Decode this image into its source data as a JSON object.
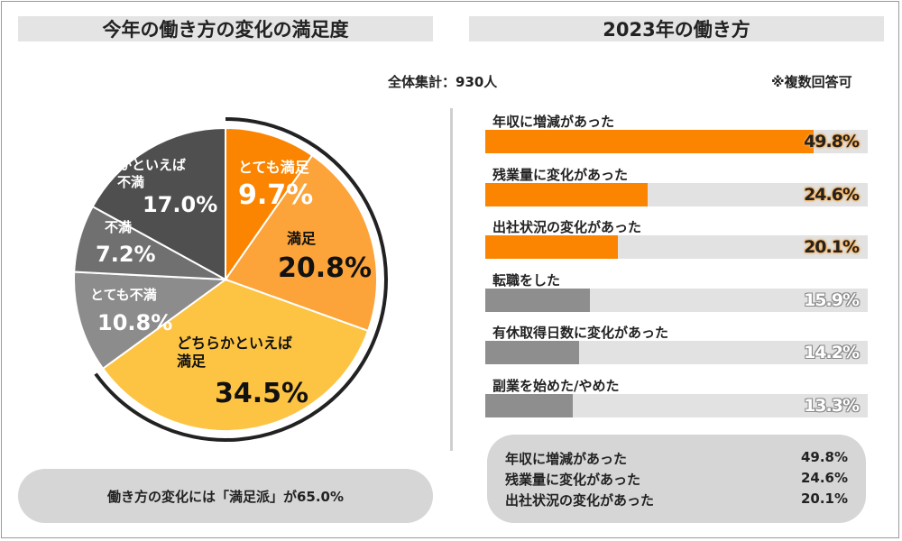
{
  "left": {
    "title": "今年の働き方の変化の満足度",
    "summary": "働き方の変化には「満足派」が65.0%"
  },
  "right": {
    "title": "2023年の働き方",
    "total": "全体集計：930人",
    "multi": "※複数回答可",
    "summary": [
      {
        "label": "年収に増減があった",
        "value": "49.8%"
      },
      {
        "label": "残業量に変化があった",
        "value": "24.6%"
      },
      {
        "label": "出社状況の変化があった",
        "value": "20.1%"
      }
    ]
  },
  "colors": {
    "orange_dark": "#fb8500",
    "orange_mid": "#fca33a",
    "yellow": "#fdc444",
    "gray_light": "#8c8c8c",
    "gray_mid": "#707070",
    "gray_dark": "#4f4f4f",
    "bar_orange": "#fb8500",
    "bar_gray": "#8e8e8e",
    "track": "#e2e2e2"
  },
  "chart_data": [
    {
      "type": "pie",
      "title": "今年の働き方の変化の満足度",
      "slices": [
        {
          "name": "とても満足",
          "value": 9.7,
          "label": "9.7%",
          "color": "#fb8500"
        },
        {
          "name": "満足",
          "value": 20.8,
          "label": "20.8%",
          "color": "#fca33a"
        },
        {
          "name": "どちらかといえば満足",
          "value": 34.5,
          "label": "34.5%",
          "color": "#fdc444"
        },
        {
          "name": "とても不満",
          "value": 10.8,
          "label": "10.8%",
          "color": "#8c8c8c"
        },
        {
          "name": "不満",
          "value": 7.2,
          "label": "7.2%",
          "color": "#707070"
        },
        {
          "name": "どちらかといえば不満",
          "value": 17.0,
          "label": "17.0%",
          "color": "#4f4f4f"
        }
      ]
    },
    {
      "type": "bar",
      "title": "2023年の働き方",
      "orientation": "horizontal",
      "categories": [
        "年収に増減があった",
        "残業量に変化があった",
        "出社状況の変化があった",
        "転職をした",
        "有休取得日数に変化があった",
        "副業を始めた/やめた"
      ],
      "values": [
        49.8,
        24.6,
        20.1,
        15.9,
        14.2,
        13.3
      ],
      "labels": [
        "49.8%",
        "24.6%",
        "20.1%",
        "15.9%",
        "14.2%",
        "13.3%"
      ],
      "highlight": [
        true,
        true,
        true,
        false,
        false,
        false
      ],
      "xlim": [
        0,
        58
      ]
    }
  ]
}
